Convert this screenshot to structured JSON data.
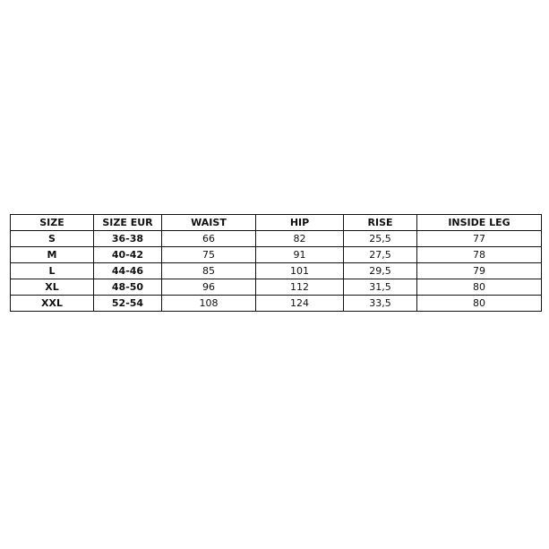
{
  "size_chart": {
    "headers": [
      "SIZE",
      "SIZE EUR",
      "WAIST",
      "HIP",
      "RISE",
      "INSIDE LEG"
    ],
    "rows": [
      [
        "S",
        "36-38",
        "66",
        "82",
        "25,5",
        "77"
      ],
      [
        "M",
        "40-42",
        "75",
        "91",
        "27,5",
        "78"
      ],
      [
        "L",
        "44-46",
        "85",
        "101",
        "29,5",
        "79"
      ],
      [
        "XL",
        "48-50",
        "96",
        "112",
        "31,5",
        "80"
      ],
      [
        "XXL",
        "52-54",
        "108",
        "124",
        "33,5",
        "80"
      ]
    ]
  }
}
